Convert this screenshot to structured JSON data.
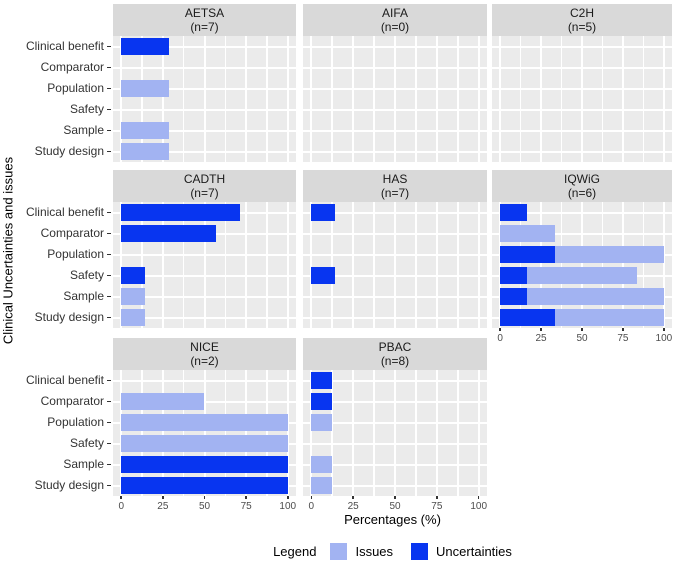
{
  "chart_data": {
    "type": "bar",
    "orientation": "horizontal",
    "title": "",
    "xlabel": "Percentages (%)",
    "ylabel": "Clinical Uncertainties and issues",
    "xlim": [
      0,
      100
    ],
    "xticks": [
      0,
      25,
      50,
      75,
      100
    ],
    "minor_gridlines": [
      12.5,
      37.5,
      62.5,
      87.5
    ],
    "grid": "on",
    "categories": [
      "Clinical benefit",
      "Comparator",
      "Population",
      "Safety",
      "Sample",
      "Study design"
    ],
    "series_colors": {
      "Issues": "#a2b3f2",
      "Uncertainties": "#0835f0"
    },
    "panel_bg": "#ebebeb",
    "strip_bg": "#d9d9d9",
    "legend": {
      "title": "Legend",
      "position": "bottom",
      "items": [
        {
          "label": "Issues",
          "color": "#a2b3f2"
        },
        {
          "label": "Uncertainties",
          "color": "#0835f0"
        }
      ]
    },
    "facets": [
      {
        "name": "AETSA",
        "n": 7,
        "row": 0,
        "col": 0,
        "axis": false,
        "bars": [
          {
            "category": "Clinical benefit",
            "segments": [
              {
                "series": "Uncertainties",
                "value": 28.6
              }
            ]
          },
          {
            "category": "Population",
            "segments": [
              {
                "series": "Issues",
                "value": 28.6
              }
            ]
          },
          {
            "category": "Sample",
            "segments": [
              {
                "series": "Issues",
                "value": 28.6
              }
            ]
          },
          {
            "category": "Study design",
            "segments": [
              {
                "series": "Issues",
                "value": 28.6
              }
            ]
          }
        ]
      },
      {
        "name": "AIFA",
        "n": 0,
        "row": 0,
        "col": 1,
        "axis": false,
        "bars": []
      },
      {
        "name": "C2H",
        "n": 5,
        "row": 0,
        "col": 2,
        "axis": false,
        "bars": []
      },
      {
        "name": "CADTH",
        "n": 7,
        "row": 1,
        "col": 0,
        "axis": false,
        "bars": [
          {
            "category": "Clinical benefit",
            "segments": [
              {
                "series": "Uncertainties",
                "value": 71.4
              }
            ]
          },
          {
            "category": "Comparator",
            "segments": [
              {
                "series": "Uncertainties",
                "value": 57.1
              }
            ]
          },
          {
            "category": "Safety",
            "segments": [
              {
                "series": "Uncertainties",
                "value": 14.3
              }
            ]
          },
          {
            "category": "Sample",
            "segments": [
              {
                "series": "Issues",
                "value": 14.3
              }
            ]
          },
          {
            "category": "Study design",
            "segments": [
              {
                "series": "Issues",
                "value": 14.3
              }
            ]
          }
        ]
      },
      {
        "name": "HAS",
        "n": 7,
        "row": 1,
        "col": 1,
        "axis": false,
        "bars": [
          {
            "category": "Clinical benefit",
            "segments": [
              {
                "series": "Uncertainties",
                "value": 14.3
              }
            ]
          },
          {
            "category": "Safety",
            "segments": [
              {
                "series": "Uncertainties",
                "value": 14.3
              }
            ]
          }
        ]
      },
      {
        "name": "IQWiG",
        "n": 6,
        "row": 1,
        "col": 2,
        "axis": true,
        "bars": [
          {
            "category": "Clinical benefit",
            "segments": [
              {
                "series": "Uncertainties",
                "value": 16.7
              }
            ]
          },
          {
            "category": "Comparator",
            "segments": [
              {
                "series": "Issues",
                "value": 33.3
              }
            ]
          },
          {
            "category": "Population",
            "segments": [
              {
                "series": "Uncertainties",
                "value": 33.3
              },
              {
                "series": "Issues",
                "value": 66.7
              }
            ]
          },
          {
            "category": "Safety",
            "segments": [
              {
                "series": "Uncertainties",
                "value": 16.7
              },
              {
                "series": "Issues",
                "value": 66.7
              }
            ]
          },
          {
            "category": "Sample",
            "segments": [
              {
                "series": "Uncertainties",
                "value": 16.7
              },
              {
                "series": "Issues",
                "value": 83.3
              }
            ]
          },
          {
            "category": "Study design",
            "segments": [
              {
                "series": "Uncertainties",
                "value": 33.3
              },
              {
                "series": "Issues",
                "value": 66.7
              }
            ]
          }
        ]
      },
      {
        "name": "NICE",
        "n": 2,
        "row": 2,
        "col": 0,
        "axis": true,
        "bars": [
          {
            "category": "Comparator",
            "segments": [
              {
                "series": "Issues",
                "value": 50
              }
            ]
          },
          {
            "category": "Population",
            "segments": [
              {
                "series": "Issues",
                "value": 100
              }
            ]
          },
          {
            "category": "Safety",
            "segments": [
              {
                "series": "Issues",
                "value": 100
              }
            ]
          },
          {
            "category": "Sample",
            "segments": [
              {
                "series": "Uncertainties",
                "value": 100
              }
            ]
          },
          {
            "category": "Study design",
            "segments": [
              {
                "series": "Uncertainties",
                "value": 100
              }
            ]
          }
        ]
      },
      {
        "name": "PBAC",
        "n": 8,
        "row": 2,
        "col": 1,
        "axis": true,
        "bars": [
          {
            "category": "Clinical benefit",
            "segments": [
              {
                "series": "Uncertainties",
                "value": 12.5
              }
            ]
          },
          {
            "category": "Comparator",
            "segments": [
              {
                "series": "Uncertainties",
                "value": 12.5
              }
            ]
          },
          {
            "category": "Population",
            "segments": [
              {
                "series": "Issues",
                "value": 12.5
              }
            ]
          },
          {
            "category": "Sample",
            "segments": [
              {
                "series": "Issues",
                "value": 12.5
              }
            ]
          },
          {
            "category": "Study design",
            "segments": [
              {
                "series": "Issues",
                "value": 12.5
              }
            ]
          }
        ]
      }
    ]
  }
}
